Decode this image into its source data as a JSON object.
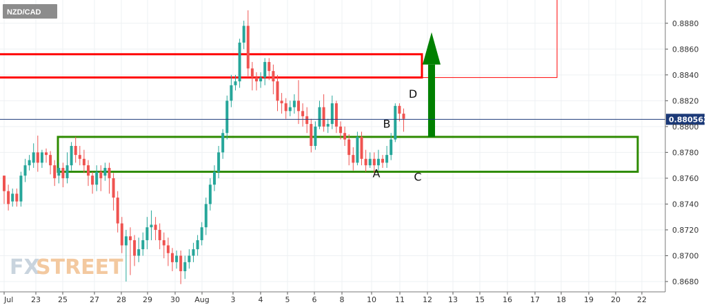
{
  "chart_data": {
    "type": "candlestick",
    "symbol": "NZD/CAD",
    "watermark": {
      "part1": "FX",
      "part2": "STREET"
    },
    "ylim": [
      0.8672,
      0.8898
    ],
    "y_ticks": [
      "0.8680",
      "0.8700",
      "0.8720",
      "0.8740",
      "0.8760",
      "0.8780",
      "0.8800",
      "0.8820",
      "0.8840",
      "0.8860",
      "0.8880"
    ],
    "x_ticks": [
      "Jul",
      "23",
      "25",
      "27",
      "28",
      "29",
      "30",
      "Aug",
      "3",
      "4",
      "5",
      "6",
      "8",
      "10",
      "11",
      "12",
      "13",
      "15",
      "16",
      "17",
      "18",
      "19",
      "20",
      "22"
    ],
    "current_price": "0.880562",
    "colors": {
      "up": "#26a69a",
      "down": "#ef5350",
      "support_zone": "#2e8b00",
      "resistance_zone": "#ff0000",
      "arrow": "#008000",
      "price_line": "#1c3a78"
    },
    "support_zone": {
      "low": 0.8765,
      "high": 0.8792,
      "start_day": "25",
      "end_day": "22"
    },
    "resistance_zone": {
      "low": 0.8838,
      "high": 0.8856
    },
    "annotations": [
      {
        "label": "A",
        "price": 0.8766
      },
      {
        "label": "B",
        "price": 0.8796
      },
      {
        "label": "C",
        "price": 0.8766
      },
      {
        "label": "D",
        "price": 0.8818
      }
    ],
    "candles": [
      [
        0.8762,
        0.875,
        0.874,
        0.8762
      ],
      [
        0.875,
        0.874,
        0.8735,
        0.8755
      ],
      [
        0.8742,
        0.8748,
        0.8738,
        0.8752
      ],
      [
        0.8748,
        0.8742,
        0.8738,
        0.8752
      ],
      [
        0.8742,
        0.8762,
        0.8738,
        0.8765
      ],
      [
        0.8762,
        0.877,
        0.8757,
        0.8775
      ],
      [
        0.877,
        0.8774,
        0.8766,
        0.8778
      ],
      [
        0.8772,
        0.878,
        0.8768,
        0.8787
      ],
      [
        0.878,
        0.8772,
        0.8765,
        0.8793
      ],
      [
        0.8772,
        0.878,
        0.8768,
        0.8782
      ],
      [
        0.878,
        0.8778,
        0.8772,
        0.8783
      ],
      [
        0.8778,
        0.877,
        0.8763,
        0.8781
      ],
      [
        0.877,
        0.876,
        0.8754,
        0.8774
      ],
      [
        0.8762,
        0.8768,
        0.8756,
        0.8772
      ],
      [
        0.8768,
        0.876,
        0.8753,
        0.8772
      ],
      [
        0.876,
        0.877,
        0.8756,
        0.878
      ],
      [
        0.877,
        0.8785,
        0.8766,
        0.8788
      ],
      [
        0.8785,
        0.8778,
        0.8772,
        0.8792
      ],
      [
        0.8778,
        0.8775,
        0.877,
        0.8785
      ],
      [
        0.8775,
        0.877,
        0.8764,
        0.8782
      ],
      [
        0.877,
        0.8762,
        0.8754,
        0.8774
      ],
      [
        0.8762,
        0.8755,
        0.8748,
        0.8765
      ],
      [
        0.8755,
        0.8765,
        0.875,
        0.877
      ],
      [
        0.8765,
        0.876,
        0.875,
        0.877
      ],
      [
        0.8762,
        0.8768,
        0.8758,
        0.8772
      ],
      [
        0.8768,
        0.876,
        0.8748,
        0.8772
      ],
      [
        0.876,
        0.8745,
        0.8735,
        0.8764
      ],
      [
        0.8745,
        0.8725,
        0.8718,
        0.875
      ],
      [
        0.8725,
        0.8708,
        0.8702,
        0.873
      ],
      [
        0.8708,
        0.8715,
        0.868,
        0.872
      ],
      [
        0.8715,
        0.8712,
        0.8685,
        0.8722
      ],
      [
        0.8712,
        0.87,
        0.8692,
        0.8716
      ],
      [
        0.87,
        0.8705,
        0.8695,
        0.8714
      ],
      [
        0.8705,
        0.8712,
        0.87,
        0.8718
      ],
      [
        0.8712,
        0.8722,
        0.8705,
        0.873
      ],
      [
        0.8722,
        0.8724,
        0.8712,
        0.8735
      ],
      [
        0.8724,
        0.872,
        0.8712,
        0.873
      ],
      [
        0.872,
        0.8712,
        0.8705,
        0.8725
      ],
      [
        0.8712,
        0.8708,
        0.8698,
        0.8718
      ],
      [
        0.8708,
        0.8702,
        0.8692,
        0.8714
      ],
      [
        0.8702,
        0.8695,
        0.8688,
        0.8706
      ],
      [
        0.8695,
        0.87,
        0.869,
        0.8704
      ],
      [
        0.87,
        0.8688,
        0.8678,
        0.8704
      ],
      [
        0.8688,
        0.8695,
        0.8682,
        0.87
      ],
      [
        0.8695,
        0.87,
        0.869,
        0.8705
      ],
      [
        0.87,
        0.8705,
        0.8695,
        0.871
      ],
      [
        0.8705,
        0.8712,
        0.87,
        0.8716
      ],
      [
        0.8712,
        0.8722,
        0.8708,
        0.8726
      ],
      [
        0.8722,
        0.874,
        0.8716,
        0.8745
      ],
      [
        0.874,
        0.8755,
        0.8735,
        0.876
      ],
      [
        0.8755,
        0.8765,
        0.875,
        0.877
      ],
      [
        0.8765,
        0.878,
        0.876,
        0.8785
      ],
      [
        0.878,
        0.8795,
        0.8775,
        0.8798
      ],
      [
        0.8795,
        0.882,
        0.879,
        0.8824
      ],
      [
        0.882,
        0.8832,
        0.8815,
        0.884
      ],
      [
        0.8832,
        0.8835,
        0.8828,
        0.884
      ],
      [
        0.8835,
        0.8865,
        0.883,
        0.8868
      ],
      [
        0.8865,
        0.8878,
        0.886,
        0.8882
      ],
      [
        0.8878,
        0.8845,
        0.8838,
        0.889
      ],
      [
        0.8845,
        0.8838,
        0.8828,
        0.885
      ],
      [
        0.8838,
        0.8835,
        0.8828,
        0.8842
      ],
      [
        0.8835,
        0.8838,
        0.883,
        0.8842
      ],
      [
        0.8838,
        0.885,
        0.8832,
        0.8853
      ],
      [
        0.885,
        0.8843,
        0.8836,
        0.8853
      ],
      [
        0.8843,
        0.8835,
        0.8825,
        0.8848
      ],
      [
        0.8835,
        0.882,
        0.8812,
        0.884
      ],
      [
        0.882,
        0.8818,
        0.881,
        0.8826
      ],
      [
        0.8818,
        0.8812,
        0.8806,
        0.8822
      ],
      [
        0.8812,
        0.8815,
        0.8808,
        0.882
      ],
      [
        0.8815,
        0.882,
        0.881,
        0.8825
      ],
      [
        0.882,
        0.8812,
        0.8802,
        0.8836
      ],
      [
        0.8812,
        0.8808,
        0.88,
        0.8818
      ],
      [
        0.8808,
        0.8802,
        0.8795,
        0.8815
      ],
      [
        0.8802,
        0.8785,
        0.878,
        0.8806
      ],
      [
        0.8785,
        0.88,
        0.8782,
        0.8804
      ],
      [
        0.88,
        0.8815,
        0.8798,
        0.882
      ],
      [
        0.8815,
        0.88,
        0.8796,
        0.8825
      ],
      [
        0.88,
        0.8802,
        0.8795,
        0.8806
      ],
      [
        0.8802,
        0.8818,
        0.8798,
        0.8824
      ],
      [
        0.8818,
        0.88,
        0.8795,
        0.882
      ],
      [
        0.88,
        0.8795,
        0.879,
        0.8804
      ],
      [
        0.8795,
        0.879,
        0.8785,
        0.88
      ],
      [
        0.879,
        0.8778,
        0.877,
        0.8794
      ],
      [
        0.8778,
        0.8772,
        0.8766,
        0.8784
      ],
      [
        0.8772,
        0.8792,
        0.877,
        0.8796
      ],
      [
        0.8792,
        0.8775,
        0.877,
        0.8796
      ],
      [
        0.8775,
        0.877,
        0.8765,
        0.8782
      ],
      [
        0.877,
        0.8775,
        0.8768,
        0.878
      ],
      [
        0.8775,
        0.877,
        0.8764,
        0.878
      ],
      [
        0.877,
        0.8775,
        0.8766,
        0.8782
      ],
      [
        0.8775,
        0.8772,
        0.8768,
        0.8778
      ],
      [
        0.8772,
        0.8778,
        0.8768,
        0.8785
      ],
      [
        0.8778,
        0.879,
        0.8774,
        0.8795
      ],
      [
        0.879,
        0.8816,
        0.8788,
        0.8818
      ],
      [
        0.8816,
        0.881,
        0.8804,
        0.8818
      ],
      [
        0.881,
        0.8806,
        0.8796,
        0.8814
      ]
    ]
  }
}
